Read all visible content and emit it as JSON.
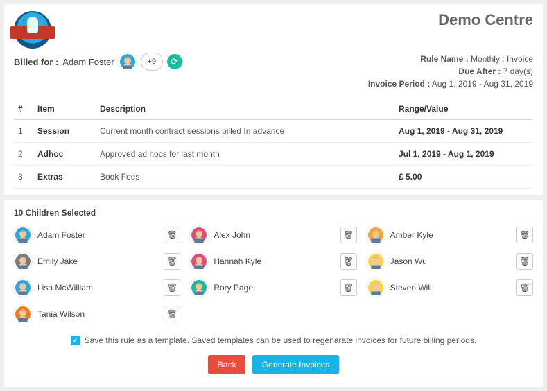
{
  "header": {
    "centre_title": "Demo Centre",
    "billed_label": "Billed for :",
    "billed_name": "Adam Foster",
    "extra_count": "+9",
    "meta": {
      "rule_label": "Rule Name :",
      "rule_value": "Monthly : Invoice",
      "due_label": "Due After :",
      "due_value": "7 day(s)",
      "period_label": "Invoice Period :",
      "period_value": "Aug 1, 2019 - Aug 31, 2019"
    }
  },
  "table": {
    "headers": {
      "num": "#",
      "item": "Item",
      "desc": "Description",
      "range": "Range/Value"
    },
    "rows": [
      {
        "num": "1",
        "item": "Session",
        "desc": "Current month contract sessions billed In advance",
        "range": "Aug 1, 2019 - Aug 31, 2019",
        "range_bold": true
      },
      {
        "num": "2",
        "item": "Adhoc",
        "desc": "Approved ad hocs for last month",
        "range": "Jul 1, 2019 - Aug 1, 2019",
        "range_bold": true
      },
      {
        "num": "3",
        "item": "Extras",
        "desc": "Book Fees",
        "range": "£ 5.00",
        "range_bold": true
      }
    ]
  },
  "children_section": {
    "title": "10 Children Selected",
    "children": [
      {
        "name": "Adam Foster",
        "bg": "#2aa8e0",
        "hair": "#3a2a1a",
        "skin": "#f4c79a"
      },
      {
        "name": "Alex John",
        "bg": "#e24c7a",
        "hair": "#2a1a10",
        "skin": "#f4c79a"
      },
      {
        "name": "Amber Kyle",
        "bg": "#f2a33c",
        "hair": "#6b3a1a",
        "skin": "#f4c79a"
      },
      {
        "name": "Emily Jake",
        "bg": "#7a7a7a",
        "hair": "#3a2a1a",
        "skin": "#f4c79a"
      },
      {
        "name": "Hannah Kyle",
        "bg": "#e24c7a",
        "hair": "#c97a2a",
        "skin": "#f4c79a"
      },
      {
        "name": "Jason Wu",
        "bg": "#f7d24a",
        "hair": "#2a1a10",
        "skin": "#f4c79a"
      },
      {
        "name": "Lisa McWilliam",
        "bg": "#2aa8e0",
        "hair": "#e6c25a",
        "skin": "#f4c79a"
      },
      {
        "name": "Rory Page",
        "bg": "#1abc9c",
        "hair": "#2a1a10",
        "skin": "#f4c79a"
      },
      {
        "name": "Steven Will",
        "bg": "#f7d24a",
        "hair": "#c0392b",
        "skin": "#f4c79a"
      },
      {
        "name": "Tania Wilson",
        "bg": "#e67e22",
        "hair": "#3a2a1a",
        "skin": "#f4c79a"
      }
    ]
  },
  "footer": {
    "save_template_text": "Save this rule as a template. Saved templates can be used to regenarate invoices for future billing periods.",
    "back_label": "Back",
    "generate_label": "Generate Invoices"
  },
  "colors": {
    "accent": "#1ab3e6",
    "danger": "#e74c3c",
    "teal": "#1abc9c"
  }
}
